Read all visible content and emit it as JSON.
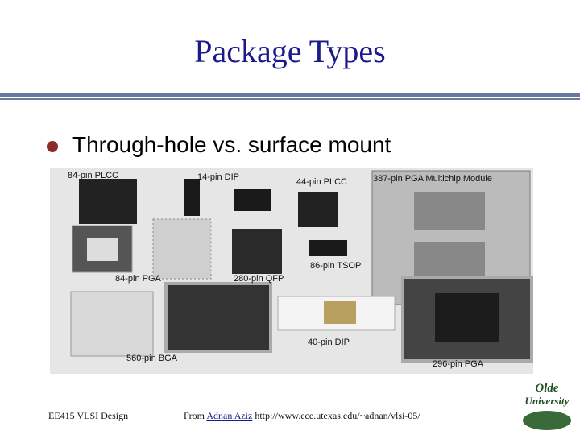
{
  "header": {
    "title": "Package Types"
  },
  "bullet": {
    "text": "Through-hole vs. surface mount"
  },
  "photo": {
    "labels": [
      "84-pin PLCC",
      "14-pin DIP",
      "44-pin PLCC",
      "387-pin PGA Multichip Module",
      "84-pin PGA",
      "280-pin QFP",
      "86-pin TSOP",
      "560-pin BGA",
      "40-pin DIP",
      "296-pin PGA"
    ]
  },
  "footer": {
    "course": "EE415 VLSI Design",
    "credit": {
      "prefix": "From",
      "author": "Adnan Aziz",
      "url": "http://www.ece.utexas.edu/~adnan/vlsi-05/"
    }
  },
  "logo": {
    "lines": [
      "Olde",
      "University"
    ]
  }
}
